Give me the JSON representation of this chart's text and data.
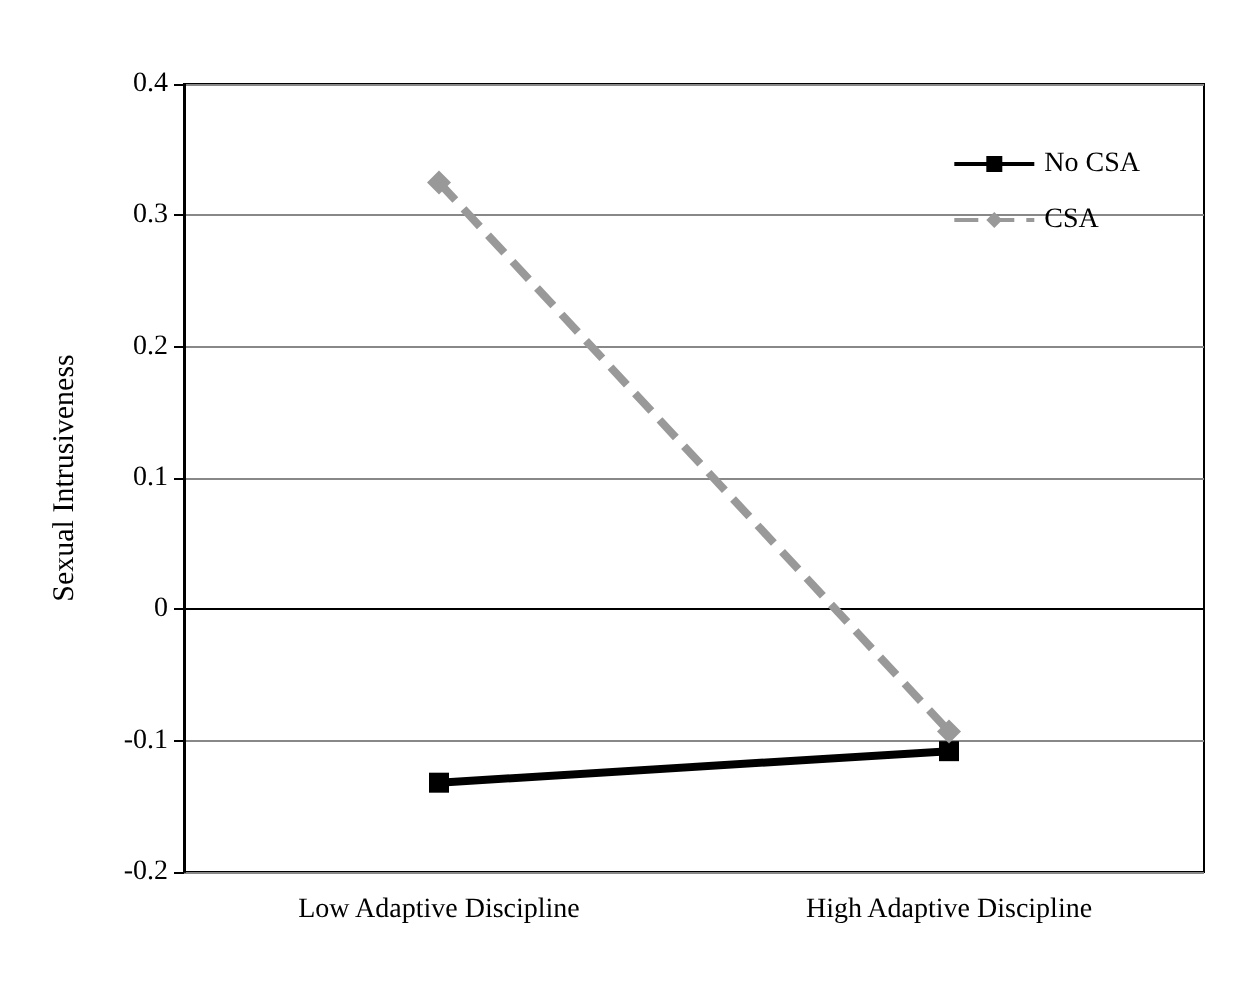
{
  "chart_data": {
    "type": "line",
    "ylabel": "Sexual Intrusiveness",
    "categories": [
      "Low Adaptive Discipline",
      "High Adaptive Discipline"
    ],
    "series": [
      {
        "name": "No CSA",
        "color": "#000000",
        "values": [
          -0.132,
          -0.108
        ],
        "marker": "square",
        "line_style": "solid"
      },
      {
        "name": "CSA",
        "color": "#999999",
        "values": [
          0.325,
          -0.093
        ],
        "marker": "diamond",
        "line_style": "dashed"
      }
    ],
    "ylim": [
      -0.2,
      0.4
    ],
    "yticks": [
      -0.2,
      -0.1,
      0,
      0.1,
      0.2,
      0.3,
      0.4
    ],
    "grid": "y",
    "legend": "top right"
  }
}
